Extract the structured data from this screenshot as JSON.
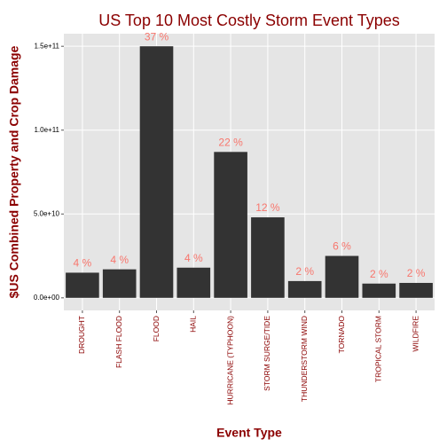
{
  "chart_data": {
    "type": "bar",
    "title": "US Top 10 Most Costly Storm Event Types",
    "x_label": "Event Type",
    "y_label": "$US Combined Property and Crop Damage",
    "categories": [
      "DROUGHT",
      "FLASH FLOOD",
      "FLOOD",
      "HAIL",
      "HURRICANE (TYPHOON)",
      "STORM SURGE/TIDE",
      "THUNDERSTORM WIND",
      "TORNADO",
      "TROPICAL STORM",
      "WILDFIRE"
    ],
    "values": [
      15000000000,
      17000000000,
      150000000000,
      18000000000,
      87000000000,
      48000000000,
      10000000000,
      25000000000,
      8500000000,
      8900000000
    ],
    "percent_labels": [
      "4 %",
      "4 %",
      "37 %",
      "4 %",
      "22 %",
      "12 %",
      "2 %",
      "6 %",
      "2 %",
      "2 %"
    ],
    "color": "#333333",
    "label_color": "#f8766d",
    "ylim": [
      -7500000000,
      157500000000
    ],
    "yticks": [
      {
        "value": 0,
        "label": "0.0e+00"
      },
      {
        "value": 50000000000,
        "label": "5.0e+10"
      },
      {
        "value": 100000000000,
        "label": "1.0e+11"
      },
      {
        "value": 150000000000,
        "label": "1.5e+11"
      }
    ],
    "grid": true
  }
}
